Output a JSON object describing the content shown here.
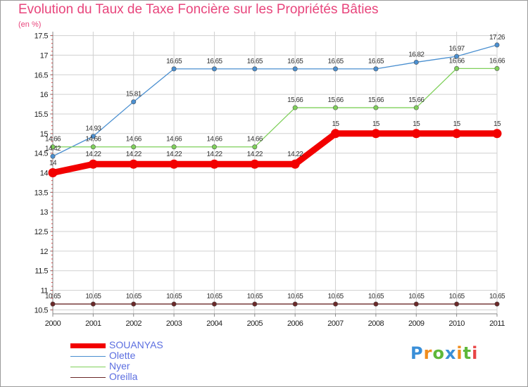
{
  "title": "Evolution du Taux de Taxe Foncière sur les Propriétés Bâties",
  "unit": "(en %)",
  "logo": "Proxiti",
  "colors": {
    "title": "#e8457c",
    "legend_text": "#5b6ee0",
    "grid": "#d0d0d0",
    "axis": "#888888",
    "logo_letters": [
      "#3a8fd8",
      "#f08c1c",
      "#5fb83a",
      "#3a8fd8",
      "#f08c1c",
      "#5fb83a",
      "#e84545"
    ]
  },
  "chart_data": {
    "type": "line",
    "title": "Evolution du Taux de Taxe Foncière sur les Propriétés Bâties",
    "ylabel": "(en %)",
    "xlabel": "",
    "x": [
      "2000",
      "2001",
      "2002",
      "2003",
      "2004",
      "2005",
      "2006",
      "2007",
      "2008",
      "2009",
      "2010",
      "2011"
    ],
    "ylim": [
      10.4,
      17.6
    ],
    "yticks": [
      "10.5",
      "11",
      "11.5",
      "12",
      "12.5",
      "13",
      "13.5",
      "14",
      "14.5",
      "15",
      "15.5",
      "16",
      "16.5",
      "17",
      "17.5"
    ],
    "ytick_values": [
      10.5,
      11,
      11.5,
      12,
      12.5,
      13,
      13.5,
      14,
      14.5,
      15,
      15.5,
      16,
      16.5,
      17,
      17.5
    ],
    "grid": true,
    "legend": "bottom-left",
    "series": [
      {
        "name": "SOUANYAS",
        "color": "#f20000",
        "thick": true,
        "values": [
          14,
          14.22,
          14.22,
          14.22,
          14.22,
          14.22,
          14.22,
          15,
          15,
          15,
          15,
          15
        ],
        "labels": [
          "14",
          "14.22",
          "14.22",
          "14.22",
          "14.22",
          "14.22",
          "14.22",
          "15",
          "15",
          "15",
          "15",
          "15"
        ]
      },
      {
        "name": "Olette",
        "color": "#4a8fd0",
        "thick": false,
        "values": [
          14.42,
          14.93,
          15.81,
          16.65,
          16.65,
          16.65,
          16.65,
          16.65,
          16.65,
          16.82,
          16.97,
          17.26
        ],
        "labels": [
          "14.42",
          "14.93",
          "15.81",
          "16.65",
          "16.65",
          "16.65",
          "16.65",
          "16.65",
          "16.65",
          "16.82",
          "16.97",
          "17.26"
        ]
      },
      {
        "name": "Nyer",
        "color": "#7fd05a",
        "thick": false,
        "values": [
          14.66,
          14.66,
          14.66,
          14.66,
          14.66,
          14.66,
          15.66,
          15.66,
          15.66,
          15.66,
          16.66,
          16.66
        ],
        "labels": [
          "14.66",
          "14.66",
          "14.66",
          "14.66",
          "14.66",
          "14.66",
          "15.66",
          "15.66",
          "15.66",
          "15.66",
          "16.66",
          "16.66"
        ]
      },
      {
        "name": "Oreilla",
        "color": "#6b2828",
        "thick": false,
        "values": [
          10.65,
          10.65,
          10.65,
          10.65,
          10.65,
          10.65,
          10.65,
          10.65,
          10.65,
          10.65,
          10.65,
          10.65
        ],
        "labels": [
          "10.65",
          "10.65",
          "10.65",
          "10.65",
          "10.65",
          "10.65",
          "10.65",
          "10.65",
          "10.65",
          "10.65",
          "10.65",
          "10.65"
        ]
      }
    ]
  }
}
